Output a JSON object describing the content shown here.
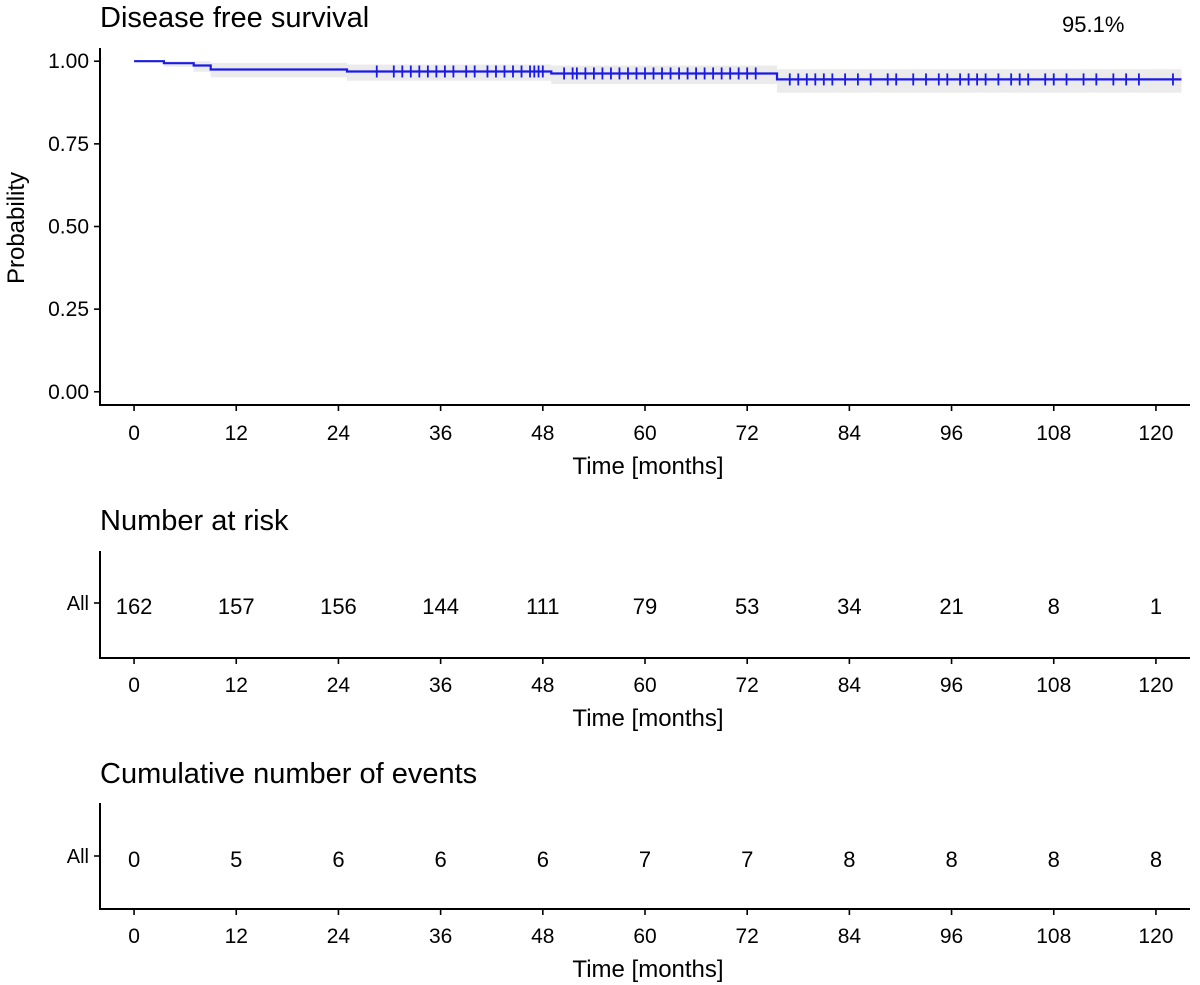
{
  "chart_data": [
    {
      "type": "line",
      "title": "Disease free survival",
      "xlabel": "Time [months]",
      "ylabel": "Probability",
      "xlim": [
        -4,
        124
      ],
      "ylim": [
        -0.04,
        1.04
      ],
      "xticks": [
        0,
        12,
        24,
        36,
        48,
        60,
        72,
        84,
        96,
        108,
        120
      ],
      "yticks": [
        0.0,
        0.25,
        0.5,
        0.75,
        1.0
      ],
      "ytick_labels": [
        "0.00",
        "0.25",
        "0.50",
        "0.75",
        "1.00"
      ],
      "grid": false,
      "annotation": "95.1%",
      "colors": {
        "line": "#1a1ae6",
        "ci": "#ebebeb"
      },
      "series": [
        {
          "name": "All",
          "step": [
            [
              0,
              1.0
            ],
            [
              3.5,
              0.994
            ],
            [
              7,
              0.987
            ],
            [
              9,
              0.975
            ],
            [
              25,
              0.969
            ],
            [
              49,
              0.963
            ],
            [
              75.5,
              0.945
            ],
            [
              123,
              0.945
            ]
          ],
          "ci_band": [
            [
              0,
              1.0,
              1.0
            ],
            [
              3.5,
              0.983,
              1.0
            ],
            [
              7,
              0.968,
              1.0
            ],
            [
              9,
              0.951,
              0.995
            ],
            [
              25,
              0.941,
              0.99
            ],
            [
              49,
              0.931,
              0.987
            ],
            [
              75.5,
              0.905,
              0.976
            ],
            [
              123,
              0.905,
              0.976
            ]
          ],
          "censored": [
            28.5,
            30.5,
            31.5,
            32.5,
            33.5,
            34.5,
            35.5,
            36.5,
            37.5,
            39,
            40,
            41.5,
            42.5,
            43.5,
            44.5,
            45.5,
            46.5,
            47,
            47.5,
            48,
            50.5,
            51.5,
            52,
            53,
            54,
            55,
            56,
            57,
            58,
            59,
            60,
            61,
            62,
            63,
            64,
            65,
            66,
            67,
            68,
            69,
            70,
            71,
            72,
            73,
            77,
            78,
            79,
            80,
            81,
            82,
            83.5,
            85,
            86.5,
            88.5,
            89.5,
            91.5,
            93,
            94.5,
            95.5,
            97,
            98,
            99,
            100,
            101.5,
            103,
            104,
            105,
            107,
            108,
            109.5,
            111.5,
            113,
            115,
            116.5,
            118,
            122
          ]
        }
      ]
    },
    {
      "type": "table",
      "title": "Number at risk",
      "xlabel": "Time [months]",
      "xlim": [
        -4,
        124
      ],
      "xticks": [
        0,
        12,
        24,
        36,
        48,
        60,
        72,
        84,
        96,
        108,
        120
      ],
      "rows": [
        {
          "name": "All",
          "values": [
            162,
            157,
            156,
            144,
            111,
            79,
            53,
            34,
            21,
            8,
            1
          ]
        }
      ]
    },
    {
      "type": "table",
      "title": "Cumulative number of events",
      "xlabel": "Time [months]",
      "xlim": [
        -4,
        124
      ],
      "xticks": [
        0,
        12,
        24,
        36,
        48,
        60,
        72,
        84,
        96,
        108,
        120
      ],
      "rows": [
        {
          "name": "All",
          "values": [
            0,
            5,
            6,
            6,
            6,
            7,
            7,
            8,
            8,
            8,
            8
          ]
        }
      ]
    }
  ]
}
